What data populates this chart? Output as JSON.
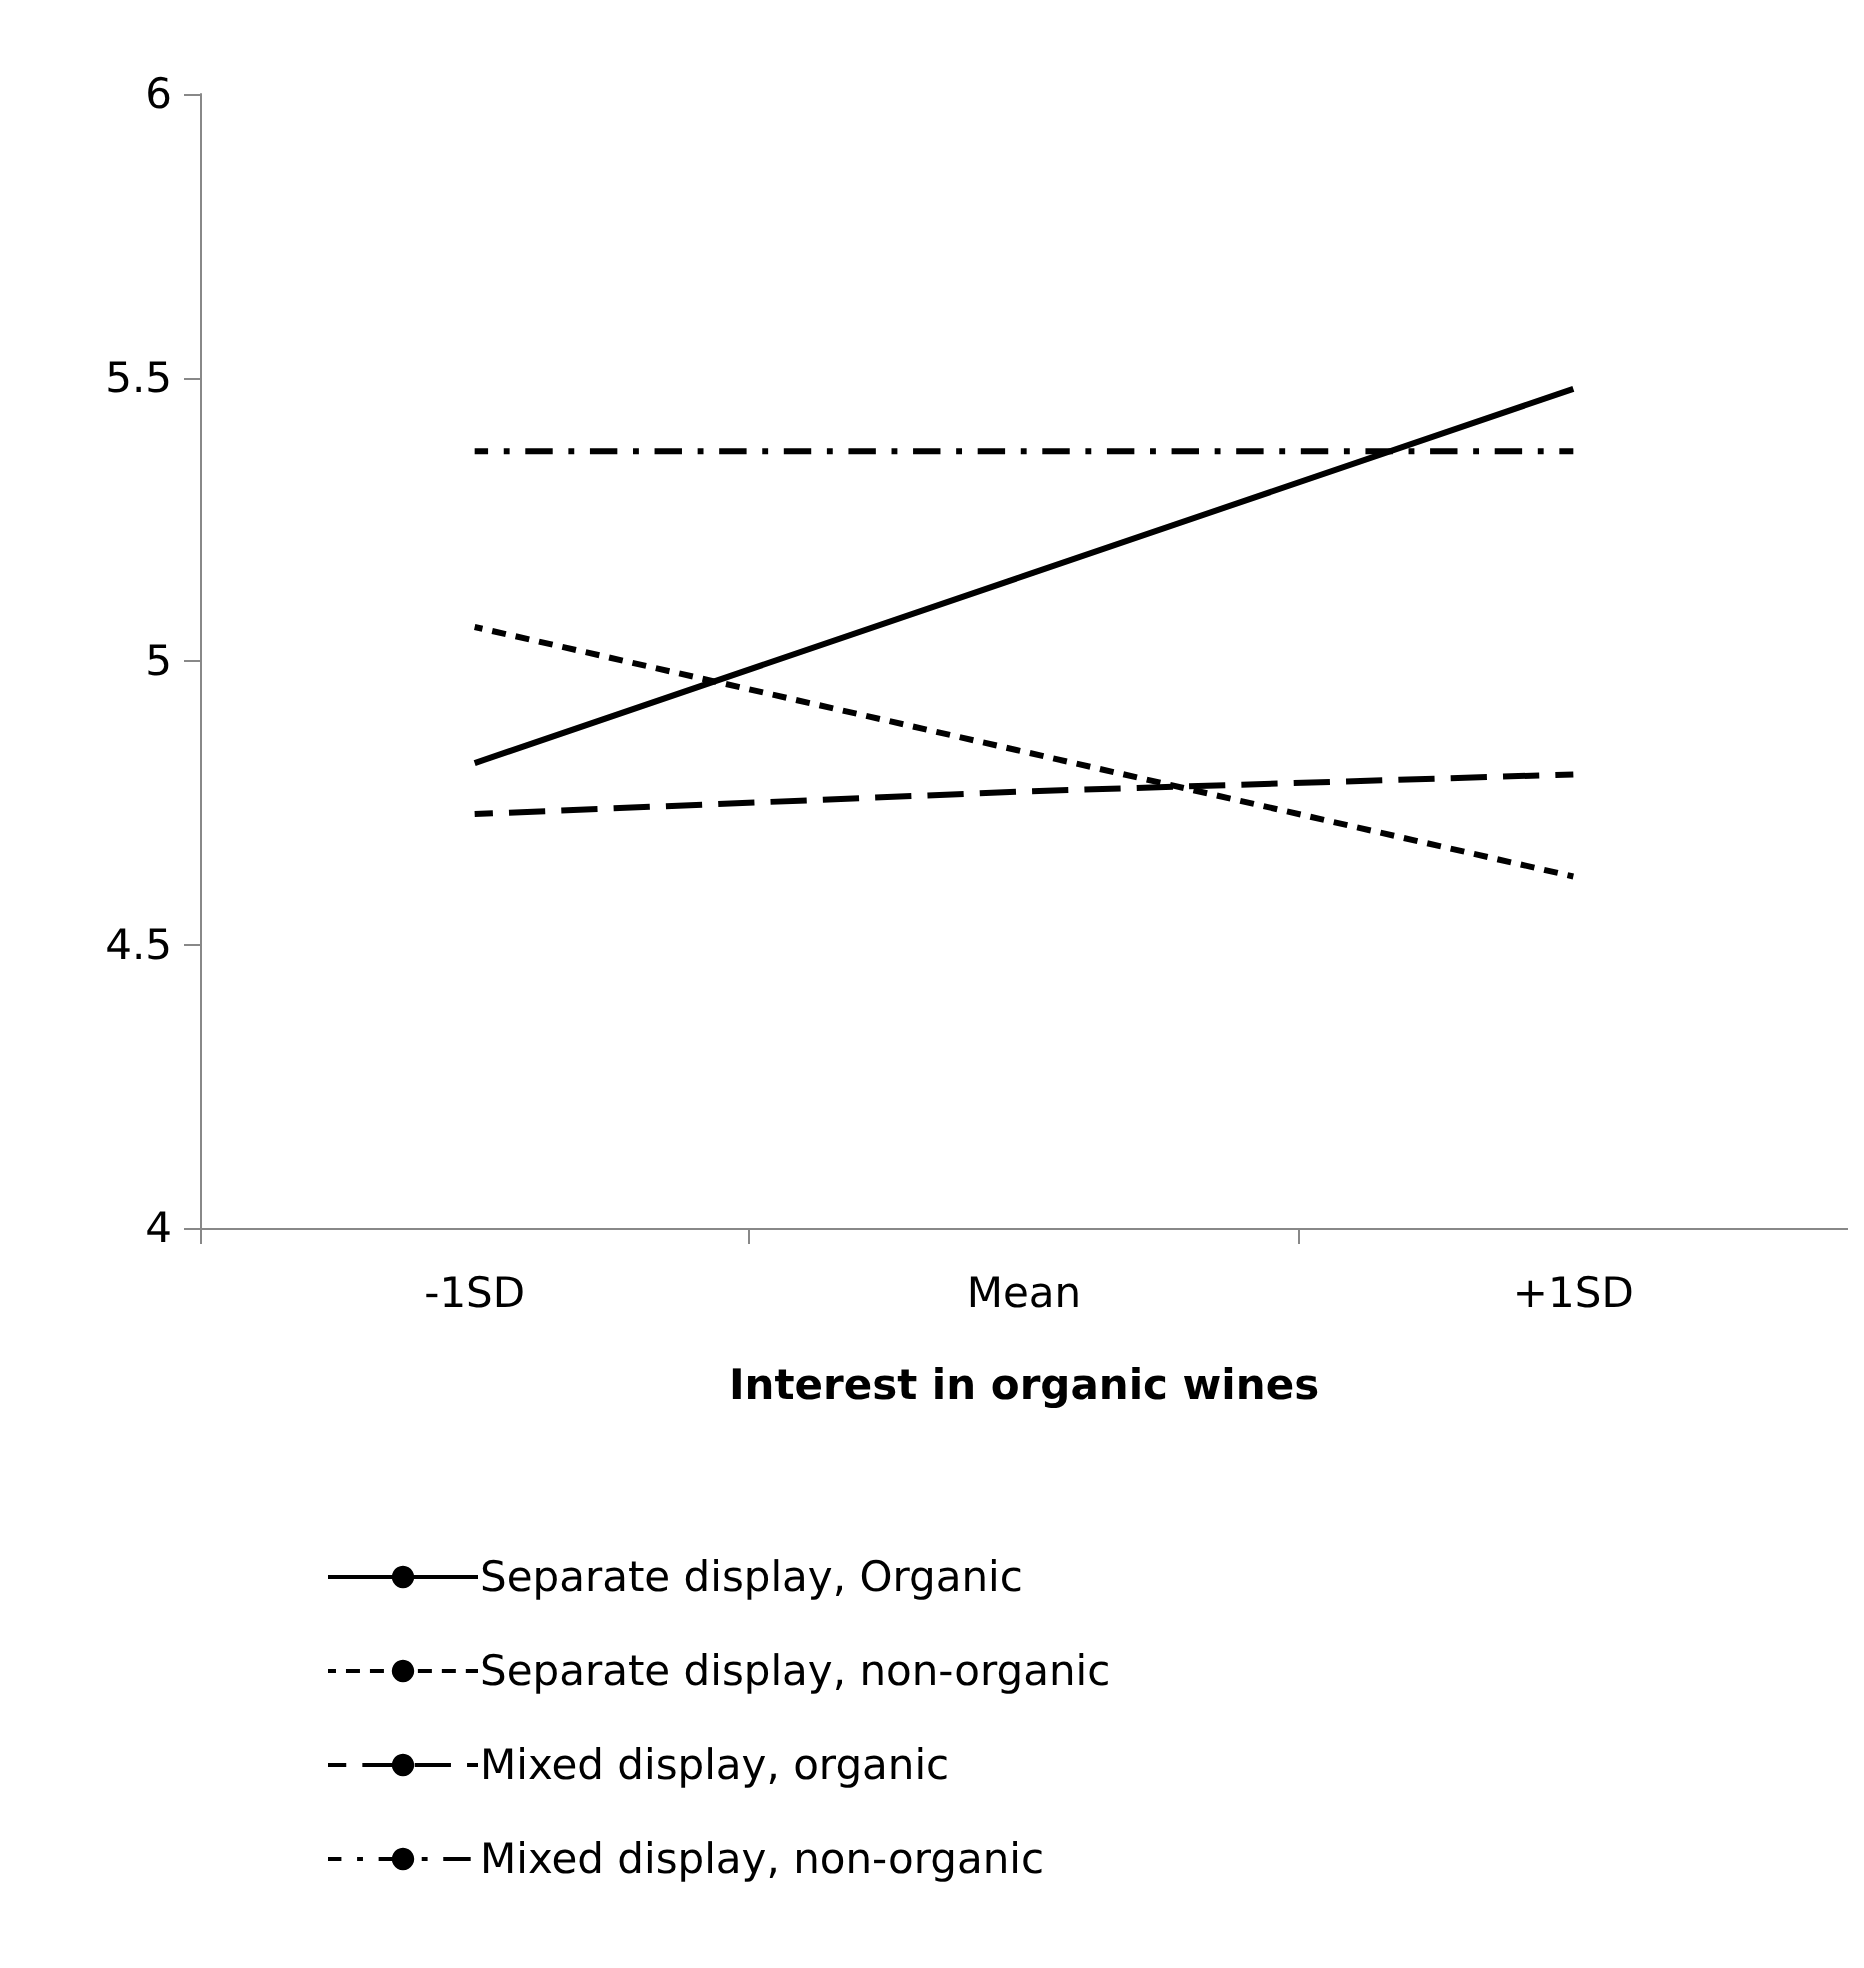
{
  "chart_data": {
    "type": "line",
    "xlabel": "Interest in organic wines",
    "categories": [
      "-1SD",
      "Mean",
      "+1SD"
    ],
    "series": [
      {
        "name": "Separate display, Organic",
        "color": "#000000",
        "line_style": "solid",
        "values": [
          4.82,
          5.15,
          5.48
        ]
      },
      {
        "name": "Separate display, non-organic",
        "color": "#000000",
        "line_style": "dotted",
        "values": [
          5.06,
          4.84,
          4.62
        ]
      },
      {
        "name": "Mixed display, organic",
        "color": "#000000",
        "line_style": "dashed",
        "values": [
          4.73,
          4.77,
          4.8
        ]
      },
      {
        "name": "Mixed display, non-organic",
        "color": "#000000",
        "line_style": "dashdot",
        "values": [
          5.37,
          5.37,
          5.37
        ]
      }
    ],
    "ylim": [
      4,
      6
    ],
    "yticks": [
      4,
      4.5,
      5,
      5.5,
      6
    ],
    "grid": false,
    "legend": "bottom",
    "marker": "none"
  }
}
